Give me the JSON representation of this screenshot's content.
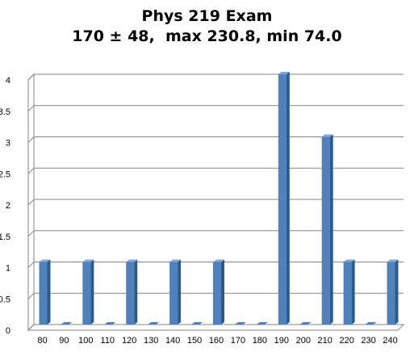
{
  "chart_data": {
    "type": "bar",
    "title": "Phys 219 Exam",
    "subtitle": "170 ± 48,  max 230.8, min 74.0",
    "xlabel": "",
    "ylabel": "",
    "categories": [
      "80",
      "90",
      "100",
      "110",
      "120",
      "130",
      "140",
      "150",
      "160",
      "170",
      "180",
      "190",
      "200",
      "210",
      "220",
      "230",
      "240"
    ],
    "values": [
      1,
      0,
      1,
      0,
      1,
      0,
      1,
      0,
      1,
      0,
      0,
      4,
      0,
      3,
      1,
      0,
      1
    ],
    "ylim": [
      0,
      4
    ],
    "yticks": [
      "0",
      "0.5",
      "1",
      "1.5",
      "2",
      "2.5",
      "3",
      "3.5",
      "4"
    ],
    "grid": true,
    "legend": "none",
    "style": "3d-column"
  },
  "colors": {
    "bar_front": "#4f81bd",
    "bar_side": "#2d5a8e",
    "bar_top": "#7fa6d8",
    "gridline": "#868686",
    "wall": "#ffffff",
    "axis": "#868686"
  }
}
